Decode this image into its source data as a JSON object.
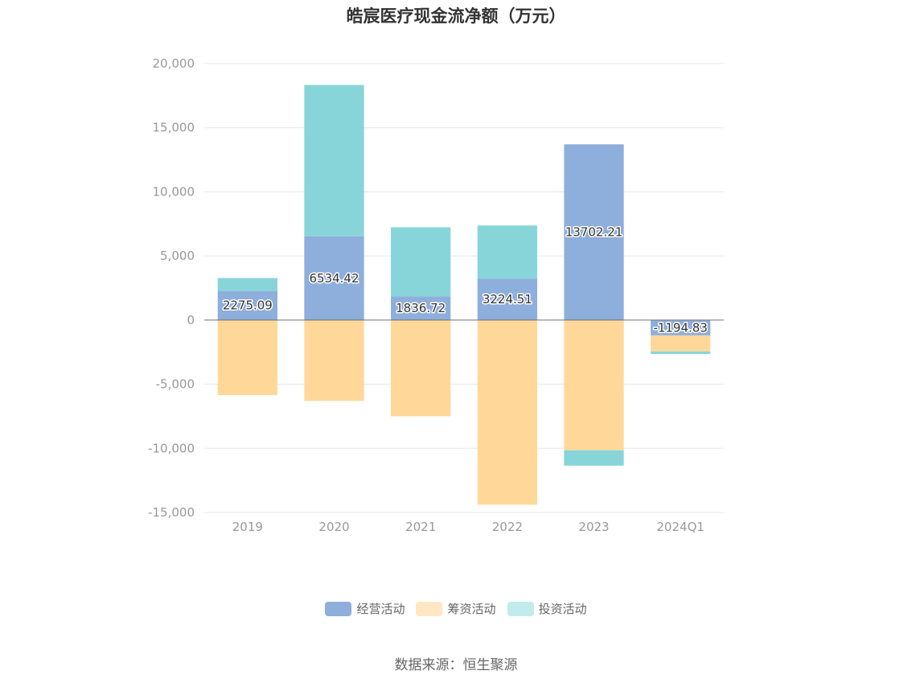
{
  "chart_data": {
    "type": "bar",
    "stacked": true,
    "title": "皓宸医疗现金流净额（万元）",
    "categories": [
      "2019",
      "2020",
      "2021",
      "2022",
      "2023",
      "2024Q1"
    ],
    "ylim": [
      -15000,
      20000
    ],
    "yticks": [
      20000,
      15000,
      10000,
      5000,
      0,
      -5000,
      -10000,
      -15000
    ],
    "ytick_labels": [
      "20,000",
      "15,000",
      "10,000",
      "5,000",
      "0",
      "-5,000",
      "-10,000",
      "-15,000"
    ],
    "grid": true,
    "legend_position": "bottom",
    "series": [
      {
        "name": "经营活动",
        "color": "#8eaedb",
        "values": [
          2275.09,
          6534.42,
          1836.72,
          3224.51,
          13702.21,
          -1194.83
        ],
        "labels": [
          "2275.09",
          "6534.42",
          "1836.72",
          "3224.51",
          "13702.21",
          "-1194.83"
        ]
      },
      {
        "name": "筹资活动",
        "color": "#ffd899",
        "values": [
          -5850,
          -6300,
          -7500,
          -14400,
          -10150,
          -1250
        ]
      },
      {
        "name": "投资活动",
        "color": "#88d5d9",
        "values": [
          1000,
          11800,
          5400,
          4150,
          -1200,
          -200
        ]
      }
    ],
    "legend_colors": [
      "#8eaedb",
      "#ffe7c4",
      "#c2ebed"
    ]
  },
  "source": "数据来源：恒生聚源"
}
